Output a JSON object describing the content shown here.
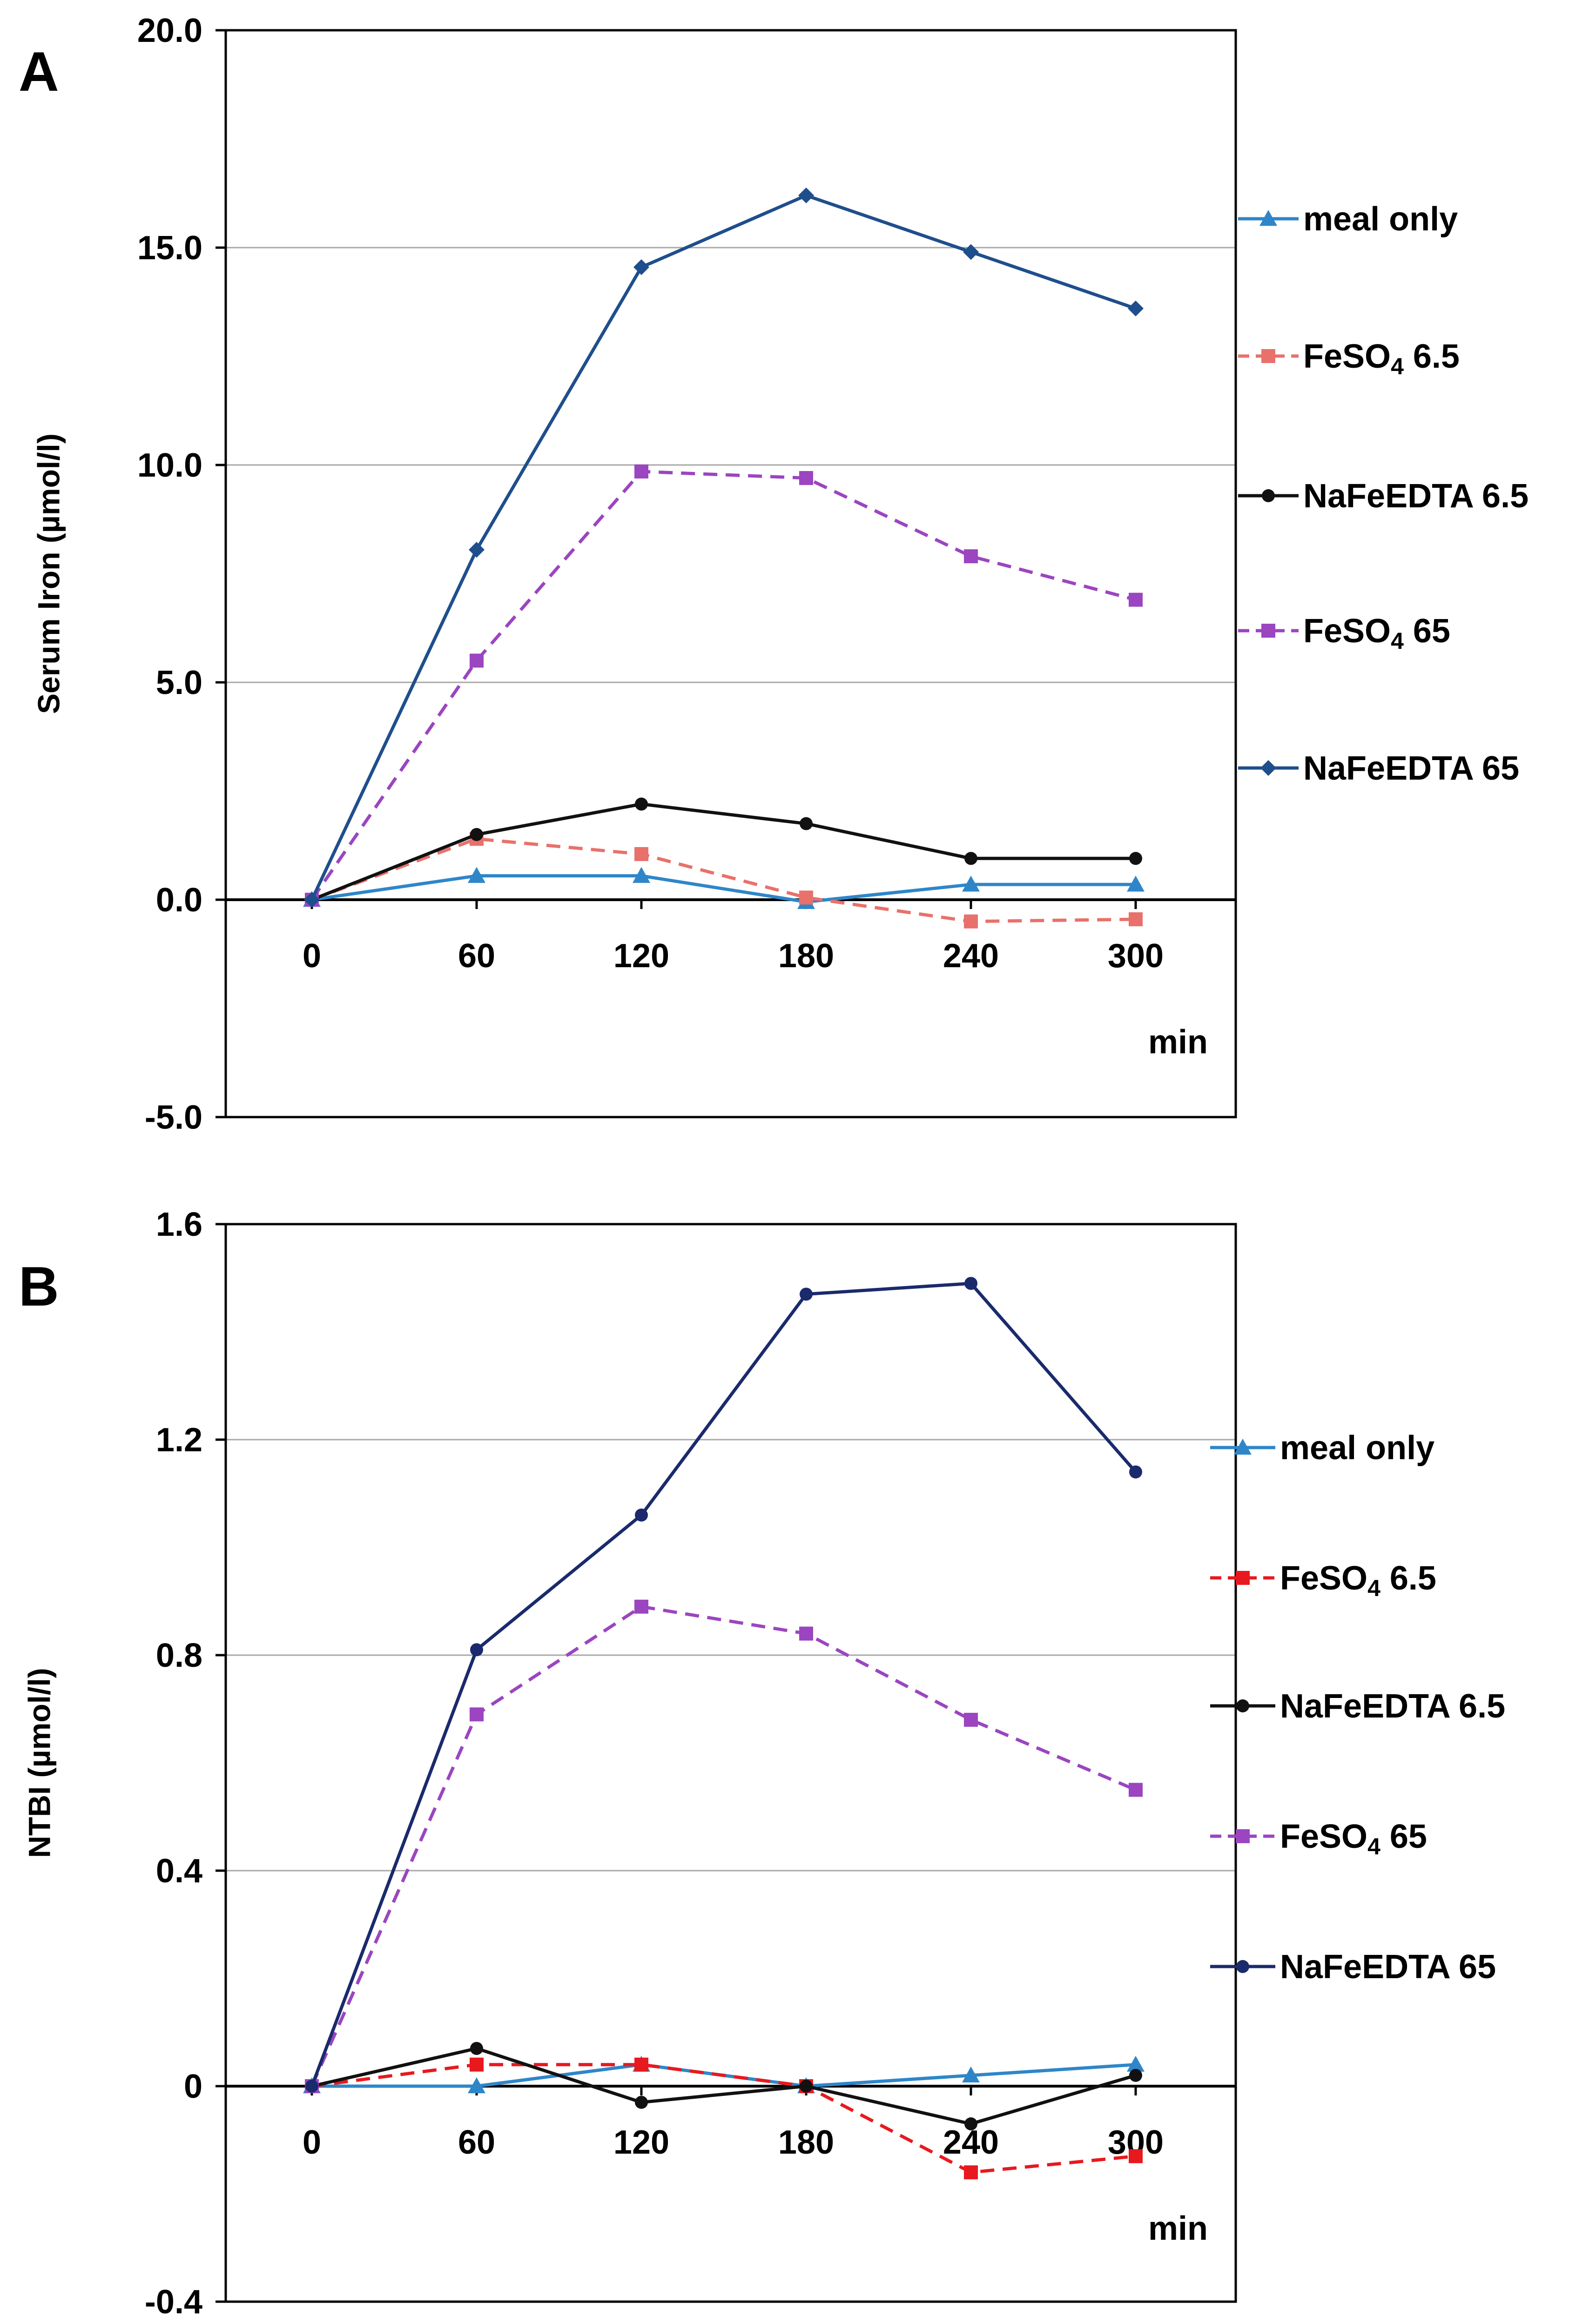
{
  "chart_data": [
    {
      "type": "line",
      "panel_label": "A",
      "xlabel": "min",
      "ylabel": "Serum Iron (µmol/l)",
      "x": [
        0,
        60,
        120,
        180,
        240,
        300
      ],
      "ylim": [
        -5.0,
        20.0
      ],
      "yticks": [
        "20.0",
        "15.0",
        "10.0",
        "5.0",
        "0.0",
        "-5.0"
      ],
      "ytick_values": [
        20,
        15,
        10,
        5,
        0,
        -5
      ],
      "xticks": [
        "0",
        "60",
        "120",
        "180",
        "240",
        "300"
      ],
      "grid": true,
      "legend_position": "right",
      "series": [
        {
          "name": "meal only",
          "name_main": "meal only",
          "name_sub": "",
          "name_tail": "",
          "color": "#2e86c9",
          "dash": false,
          "marker": "triangle",
          "values": [
            0,
            0.55,
            0.55,
            -0.05,
            0.35,
            0.35
          ]
        },
        {
          "name": "FeSO4  6.5",
          "name_main": "FeSO",
          "name_sub": "4",
          "name_tail": "  6.5",
          "color": "#e8716b",
          "dash": true,
          "marker": "square",
          "values": [
            0,
            1.4,
            1.05,
            0.05,
            -0.5,
            -0.45
          ]
        },
        {
          "name": "NaFeEDTA 6.5",
          "name_main": "NaFeEDTA 6.5",
          "name_sub": "",
          "name_tail": "",
          "color": "#111111",
          "dash": false,
          "marker": "dot",
          "values": [
            0,
            1.5,
            2.2,
            1.75,
            0.95,
            0.95
          ]
        },
        {
          "name": "FeSO4  65",
          "name_main": "FeSO",
          "name_sub": "4",
          "name_tail": "  65",
          "color": "#9b45c0",
          "dash": true,
          "marker": "square",
          "values": [
            0,
            5.5,
            9.85,
            9.7,
            7.9,
            6.9
          ]
        },
        {
          "name": "NaFeEDTA 65",
          "name_main": "NaFeEDTA 65",
          "name_sub": "",
          "name_tail": "",
          "color": "#1f4e8c",
          "dash": false,
          "marker": "diamond",
          "values": [
            0,
            8.05,
            14.55,
            16.2,
            14.9,
            13.6
          ]
        }
      ]
    },
    {
      "type": "line",
      "panel_label": "B",
      "xlabel": "min",
      "ylabel": "NTBI (µmol/l)",
      "x": [
        0,
        60,
        120,
        180,
        240,
        300
      ],
      "ylim": [
        -0.4,
        1.6
      ],
      "yticks": [
        "1.6",
        "1.2",
        "0.8",
        "0.4",
        "0",
        "-0.4"
      ],
      "ytick_values": [
        1.6,
        1.2,
        0.8,
        0.4,
        0,
        -0.4
      ],
      "xticks": [
        "0",
        "60",
        "120",
        "180",
        "240",
        "300"
      ],
      "grid": true,
      "legend_position": "right",
      "series": [
        {
          "name": "meal only",
          "name_main": "meal only",
          "name_sub": "",
          "name_tail": "",
          "color": "#2e86c9",
          "dash": false,
          "marker": "triangle",
          "values": [
            0,
            0,
            0.04,
            0,
            0.02,
            0.04
          ]
        },
        {
          "name": "FeSO4  6.5",
          "name_main": "FeSO",
          "name_sub": "4",
          "name_tail": "  6.5",
          "color": "#e8191e",
          "dash": true,
          "marker": "square",
          "values": [
            0,
            0.04,
            0.04,
            0,
            -0.16,
            -0.13
          ]
        },
        {
          "name": "NaFeEDTA 6.5",
          "name_main": "NaFeEDTA 6.5",
          "name_sub": "",
          "name_tail": "",
          "color": "#111111",
          "dash": false,
          "marker": "dot",
          "values": [
            0,
            0.07,
            -0.03,
            0,
            -0.07,
            0.02
          ]
        },
        {
          "name": "FeSO4  65",
          "name_main": "FeSO",
          "name_sub": "4",
          "name_tail": "  65",
          "color": "#9b45c0",
          "dash": true,
          "marker": "square",
          "values": [
            0,
            0.69,
            0.89,
            0.84,
            0.68,
            0.55
          ]
        },
        {
          "name": "NaFeEDTA 65",
          "name_main": "NaFeEDTA 65",
          "name_sub": "",
          "name_tail": "",
          "color": "#1a2a6c",
          "dash": false,
          "marker": "dot",
          "values": [
            0,
            0.81,
            1.06,
            1.47,
            1.49,
            1.14
          ]
        }
      ]
    }
  ]
}
